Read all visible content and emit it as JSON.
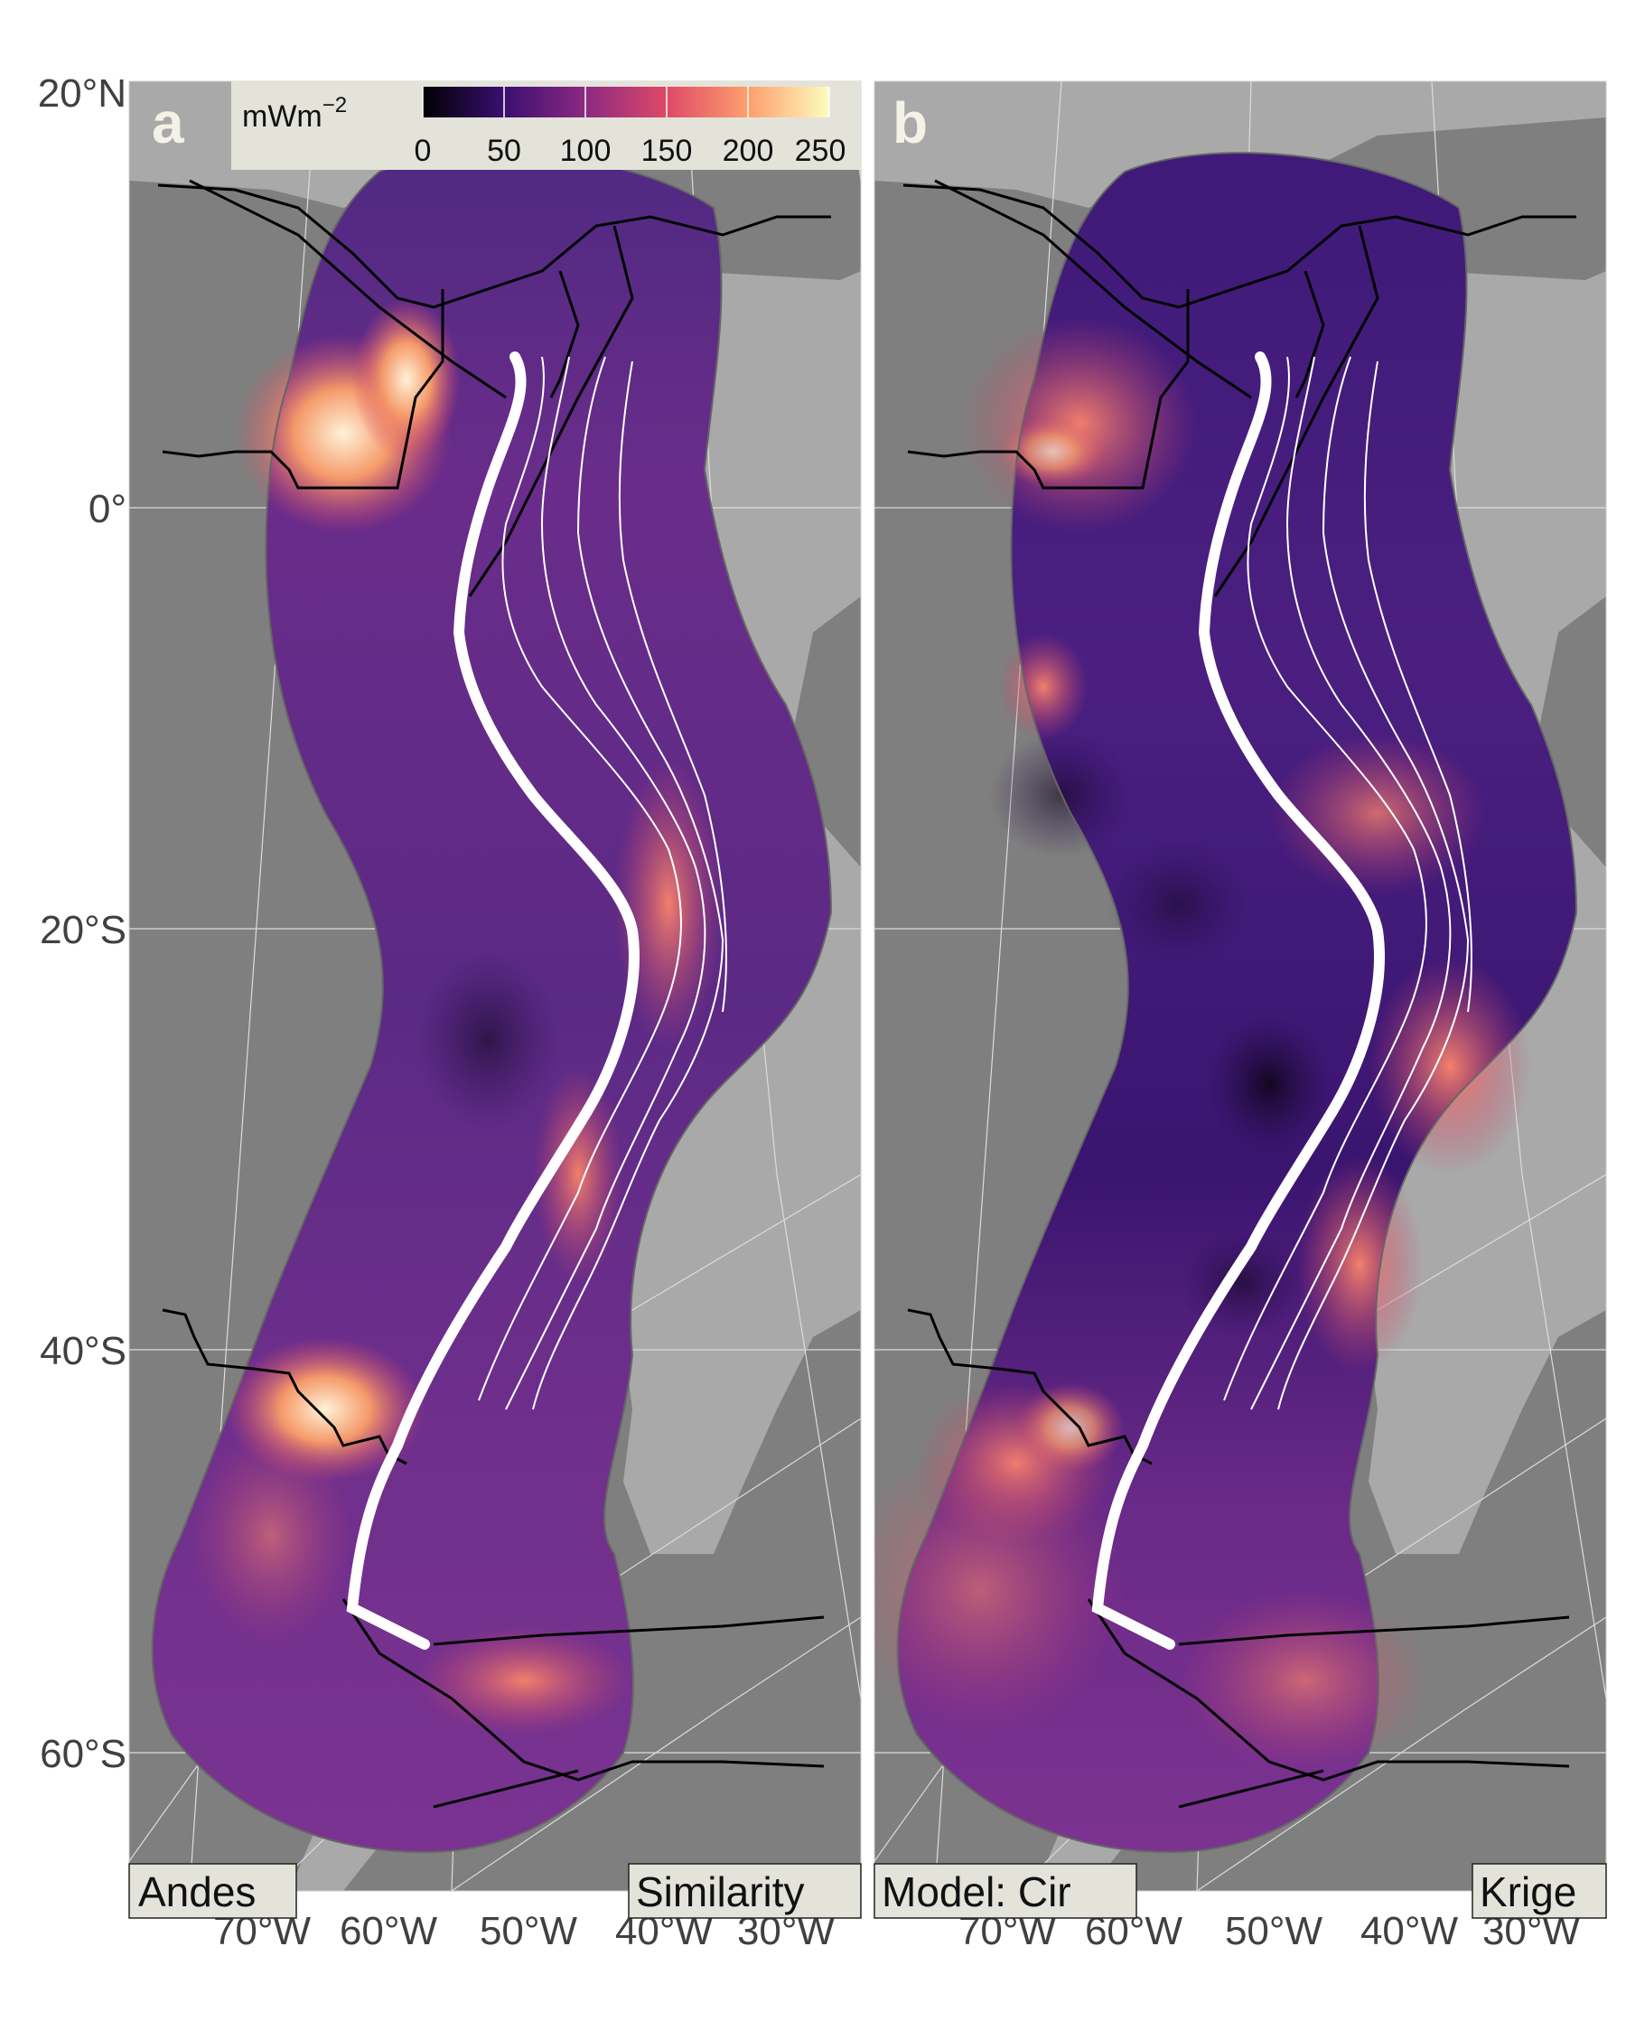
{
  "latitude_labels": [
    "20°N",
    "0°",
    "20°S",
    "40°S",
    "60°S"
  ],
  "longitude_labels": [
    "70°W",
    "60°W",
    "50°W",
    "40°W",
    "30°W"
  ],
  "colorbar": {
    "unit": "mWm",
    "unit_exponent": "−2",
    "ticks": [
      "0",
      "50",
      "100",
      "150",
      "200",
      "250"
    ],
    "colors": [
      "#000004",
      "#3b0f70",
      "#8c2981",
      "#de4968",
      "#fe9f6d",
      "#fcfdbf"
    ]
  },
  "panels": [
    {
      "letter": "a",
      "left_tag": "Andes",
      "right_tag": "Similarity"
    },
    {
      "letter": "b",
      "left_tag": "Model: Cir",
      "right_tag": "Krige"
    }
  ],
  "colors": {
    "ocean": "#7f7f7f",
    "land": "#a8a8a8",
    "tag_background": "#e4e3da",
    "base_field": "#5a2a80"
  }
}
